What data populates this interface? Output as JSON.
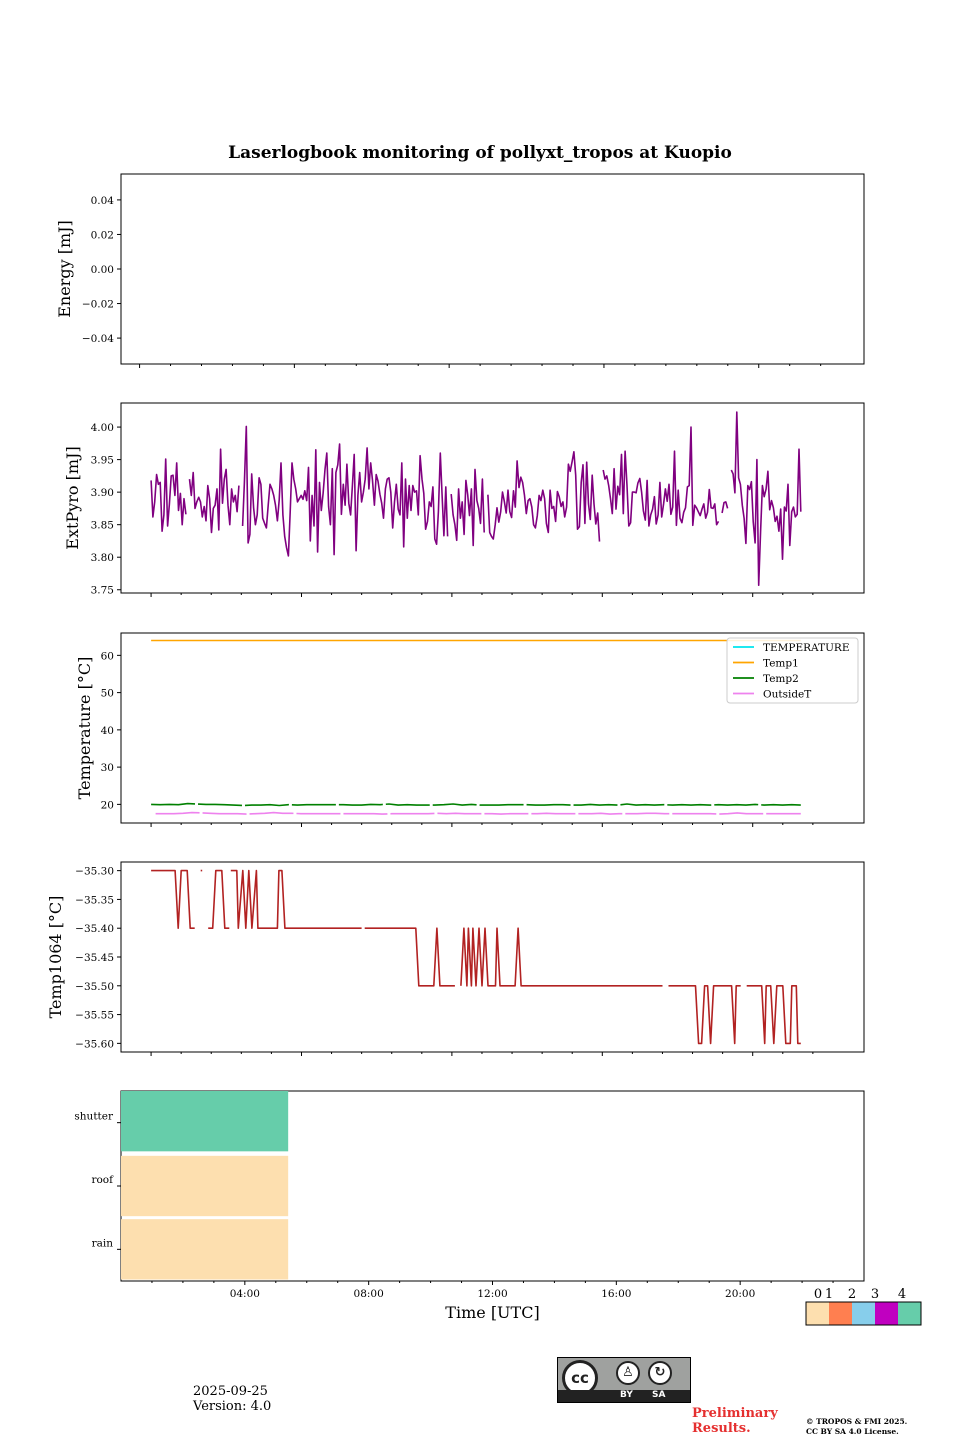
{
  "title": "Laserlogbook monitoring of pollyxt_tropos at Kuopio",
  "footer": {
    "date": "2025-09-25",
    "version": "Version: 4.0",
    "preliminary_line1": "Preliminary",
    "preliminary_line2": "Results.",
    "copyright_line1": "© TROPOS & FMI 2025.",
    "copyright_line2": "CC BY SA 4.0 License.",
    "cc_logo_text": "cc",
    "cc_by": "BY",
    "cc_sa": "SA"
  },
  "colors": {
    "energy_pyro": "#800080",
    "temperature": "#00e5ee",
    "temp1": "#ffa500",
    "temp2": "#008000",
    "outsideT": "#ee82ee",
    "temp1064": "#b22222",
    "status_0": "#fddfaf",
    "status_1": "#ff7f50",
    "status_2": "#87ceeb",
    "status_3": "#c000c0",
    "status_4": "#66cdaa"
  },
  "chart_data": [
    {
      "id": "energy",
      "type": "line",
      "ylabel": "Energy [mJ]",
      "ylim": [
        -0.055,
        0.055
      ],
      "yticks": [
        0.04,
        0.02,
        0.0,
        -0.02,
        -0.04
      ],
      "ytick_labels": [
        "0.04",
        "0.02",
        "0.00",
        "−0.02",
        "−0.04"
      ],
      "xlim": [
        -0.6,
        23.4
      ],
      "series": []
    },
    {
      "id": "extpyro",
      "type": "line",
      "ylabel": "ExtPyro [mJ]",
      "ylim": [
        3.745,
        4.037
      ],
      "yticks": [
        4.0,
        3.95,
        3.9,
        3.85,
        3.8,
        3.75
      ],
      "ytick_labels": [
        "4.00",
        "3.95",
        "3.90",
        "3.85",
        "3.80",
        "3.75"
      ],
      "xlim": [
        -1.0,
        23.7
      ],
      "series": [
        {
          "name": "ExtPyro",
          "t_start": 0.0,
          "t_end": 21.6,
          "values": [
            3.918,
            3.862,
            3.885,
            3.927,
            3.912,
            3.915,
            3.84,
            3.865,
            3.951,
            3.848,
            3.882,
            3.925,
            3.926,
            3.895,
            3.945,
            3.872,
            3.898,
            3.85,
            3.89,
            3.866,
            null,
            3.92,
            3.895,
            3.93,
            3.875,
            3.885,
            3.892,
            3.885,
            3.862,
            3.878,
            3.856,
            3.91,
            3.89,
            3.838,
            3.875,
            3.88,
            3.905,
            3.842,
            3.966,
            3.883,
            3.92,
            3.935,
            3.88,
            3.85,
            3.905,
            3.885,
            3.895,
            3.87,
            3.91,
            null,
            3.848,
            3.915,
            4.001,
            3.822,
            3.835,
            3.928,
            3.876,
            3.85,
            3.865,
            3.922,
            3.912,
            3.86,
            3.852,
            3.845,
            3.88,
            3.912,
            3.905,
            3.895,
            3.88,
            3.856,
            3.888,
            3.945,
            3.865,
            3.832,
            3.815,
            3.802,
            3.87,
            3.945,
            3.92,
            3.905,
            3.885,
            3.89,
            3.895,
            3.889,
            3.902,
            3.887,
            3.938,
            3.825,
            3.895,
            3.848,
            3.965,
            3.808,
            3.915,
            3.872,
            3.898,
            3.935,
            3.96,
            3.878,
            3.85,
            3.936,
            3.804,
            3.93,
            3.942,
            3.974,
            3.866,
            3.912,
            3.88,
            3.943,
            3.883,
            3.865,
            3.91,
            3.958,
            3.81,
            3.895,
            3.93,
            3.885,
            3.9,
            3.92,
            3.968,
            3.905,
            3.945,
            3.918,
            3.88,
            3.927,
            3.917,
            3.897,
            3.883,
            3.86,
            3.905,
            3.92,
            3.922,
            3.9,
            3.845,
            3.885,
            3.912,
            3.874,
            3.865,
            3.945,
            3.816,
            3.92,
            3.86,
            3.91,
            3.872,
            3.91,
            3.9,
            3.902,
            3.865,
            3.956,
            3.92,
            3.898,
            3.843,
            3.855,
            3.885,
            3.878,
            3.908,
            3.828,
            3.82,
            3.87,
            3.96,
            3.895,
            3.833,
            3.908,
            3.832,
            null,
            3.897,
            3.865,
            3.85,
            3.826,
            3.905,
            3.86,
            3.885,
            3.835,
            3.918,
            3.896,
            3.864,
            3.905,
            3.818,
            3.935,
            3.887,
            3.875,
            3.852,
            3.92,
            3.838,
            null,
            3.896,
            3.838,
            3.832,
            3.828,
            3.85,
            3.876,
            3.854,
            3.87,
            3.9,
            3.886,
            3.868,
            3.903,
            3.87,
            3.861,
            3.902,
            3.877,
            3.948,
            3.907,
            3.923,
            3.915,
            3.895,
            3.867,
            3.887,
            3.89,
            3.877,
            3.85,
            3.845,
            3.864,
            3.895,
            3.887,
            3.903,
            3.89,
            3.852,
            3.838,
            3.903,
            3.875,
            3.878,
            3.855,
            3.901,
            3.893,
            3.878,
            3.885,
            3.862,
            3.877,
            3.943,
            3.932,
            3.946,
            3.962,
            3.926,
            3.843,
            3.847,
            3.915,
            3.942,
            3.852,
            3.946,
            3.882,
            3.858,
            3.926,
            3.882,
            3.851,
            3.868,
            3.824,
            null,
            3.934,
            3.92,
            3.925,
            3.91,
            3.89,
            3.867,
            3.936,
            3.874,
            3.909,
            3.896,
            3.958,
            3.867,
            3.963,
            3.91,
            3.848,
            3.853,
            3.9,
            3.9,
            3.899,
            3.914,
            3.921,
            3.9,
            3.871,
            3.857,
            3.918,
            3.848,
            3.865,
            3.874,
            3.893,
            3.851,
            3.865,
            3.915,
            3.862,
            3.882,
            3.905,
            3.886,
            3.912,
            3.866,
            3.877,
            3.963,
            3.849,
            3.903,
            3.86,
            3.853,
            3.869,
            3.876,
            3.908,
            3.91,
            4.0,
            3.849,
            3.88,
            3.876,
            3.87,
            3.864,
            3.874,
            3.882,
            3.86,
            3.869,
            3.904,
            3.876,
            3.875,
            3.882,
            3.85,
            3.855,
            null,
            3.868,
            3.884,
            3.885,
            3.875,
            null,
            3.934,
            3.928,
            3.899,
            4.023,
            3.922,
            3.912,
            3.88,
            3.86,
            3.821,
            3.91,
            3.904,
            3.916,
            3.855,
            3.822,
            3.95,
            3.757,
            3.84,
            3.91,
            3.893,
            3.905,
            3.932,
            3.873,
            3.887,
            3.876,
            3.855,
            3.863,
            3.84,
            3.874,
            3.797,
            3.877,
            3.871,
            3.912,
            3.818,
            3.87,
            3.877,
            3.862,
            3.866,
            3.966,
            3.87
          ]
        }
      ]
    },
    {
      "id": "temperature",
      "type": "line",
      "ylabel": "Temperature [°C]",
      "ylim": [
        15,
        66
      ],
      "yticks": [
        60,
        50,
        40,
        30,
        20
      ],
      "ytick_labels": [
        "60",
        "50",
        "40",
        "30",
        "20"
      ],
      "xlim": [
        -1.0,
        23.7
      ],
      "legend": {
        "position": "top-right",
        "entries": [
          "TEMPERATURE",
          "Temp1",
          "Temp2",
          "OutsideT"
        ]
      },
      "series": [
        {
          "name": "TEMPERATURE",
          "values": []
        },
        {
          "name": "Temp1",
          "t_start": 0.0,
          "t_end": 21.6,
          "values": [
            64.0,
            64.0
          ]
        },
        {
          "name": "Temp2",
          "t_start": 0.0,
          "t_end": 21.6,
          "values": [
            20.0,
            19.9,
            20.0,
            19.9,
            20.2,
            20.1,
            20.0,
            20.0,
            19.9,
            19.8,
            19.7,
            19.8,
            19.8,
            19.9,
            19.7,
            19.9,
            19.8,
            19.9,
            19.9,
            19.9,
            19.9,
            19.9,
            19.8,
            19.8,
            20.0,
            19.9,
            20.1,
            19.8,
            19.9,
            19.8,
            19.8,
            19.8,
            19.9,
            20.1,
            19.8,
            20.0,
            19.8,
            19.8,
            19.8,
            19.9,
            19.9,
            19.9,
            19.8,
            19.8,
            19.9,
            19.9,
            19.8,
            19.8,
            20.0,
            19.8,
            19.9,
            19.8,
            20.1,
            19.8,
            19.9,
            19.8,
            19.9,
            19.8,
            19.9,
            19.8,
            19.9,
            19.8,
            19.9,
            19.8,
            19.9,
            19.8,
            20.0,
            19.8,
            19.9,
            19.8,
            19.9,
            19.8
          ]
        },
        {
          "name": "OutsideT",
          "t_start": 0.15,
          "t_end": 21.6,
          "values": [
            17.5,
            17.5,
            17.5,
            17.6,
            17.8,
            17.7,
            17.6,
            17.5,
            17.5,
            17.5,
            17.4,
            17.5,
            17.6,
            17.8,
            17.6,
            17.6,
            17.5,
            17.5,
            17.5,
            17.5,
            17.5,
            17.5,
            17.5,
            17.5,
            17.5,
            17.4,
            17.5,
            17.5,
            17.5,
            17.5,
            17.5,
            17.6,
            17.5,
            17.6,
            17.5,
            17.5,
            17.5,
            17.5,
            17.4,
            17.5,
            17.5,
            17.5,
            17.5,
            17.6,
            17.5,
            17.5,
            17.5,
            17.5,
            17.5,
            17.6,
            17.4,
            17.5,
            17.5,
            17.5,
            17.6,
            17.6,
            17.5,
            17.5,
            17.5,
            17.5,
            17.5,
            17.5,
            17.4,
            17.5,
            17.7,
            17.5,
            17.5,
            17.5,
            17.5,
            17.5,
            17.5,
            17.5
          ]
        }
      ]
    },
    {
      "id": "temp1064",
      "type": "line",
      "ylabel": "Temp1064 [°C]",
      "ylim": [
        -35.615,
        -35.285
      ],
      "yticks": [
        -35.3,
        -35.35,
        -35.4,
        -35.45,
        -35.5,
        -35.55,
        -35.6
      ],
      "ytick_labels": [
        "−35.30",
        "−35.35",
        "−35.40",
        "−35.45",
        "−35.50",
        "−35.55",
        "−35.60"
      ],
      "xlim": [
        -1.0,
        23.7
      ],
      "series": [
        {
          "name": "Temp1064",
          "points": [
            [
              0.0,
              -35.3
            ],
            [
              0.8,
              -35.3
            ],
            [
              0.9,
              -35.4
            ],
            [
              1.0,
              -35.3
            ],
            [
              1.2,
              -35.3
            ],
            [
              1.3,
              -35.4
            ],
            [
              1.45,
              -35.4
            ],
            null,
            [
              1.65,
              -35.3
            ],
            [
              1.7,
              -35.3
            ],
            null,
            [
              1.9,
              -35.4
            ],
            [
              2.05,
              -35.4
            ],
            [
              2.15,
              -35.3
            ],
            [
              2.35,
              -35.3
            ],
            [
              2.45,
              -35.4
            ],
            [
              2.6,
              -35.4
            ],
            null,
            [
              2.65,
              -35.3
            ],
            [
              2.85,
              -35.3
            ],
            [
              2.9,
              -35.4
            ],
            [
              3.05,
              -35.3
            ],
            [
              3.15,
              -35.4
            ],
            [
              3.25,
              -35.3
            ],
            [
              3.35,
              -35.4
            ],
            [
              3.5,
              -35.3
            ],
            [
              3.55,
              -35.4
            ],
            [
              4.2,
              -35.4
            ],
            [
              4.25,
              -35.3
            ],
            [
              4.35,
              -35.3
            ],
            [
              4.45,
              -35.4
            ],
            [
              7.0,
              -35.4
            ],
            null,
            [
              7.1,
              -35.4
            ],
            [
              8.8,
              -35.4
            ],
            [
              8.9,
              -35.5
            ],
            [
              9.4,
              -35.5
            ],
            [
              9.5,
              -35.4
            ],
            [
              9.6,
              -35.5
            ],
            [
              10.1,
              -35.5
            ],
            null,
            [
              10.3,
              -35.5
            ],
            [
              10.4,
              -35.4
            ],
            [
              10.5,
              -35.5
            ],
            [
              10.55,
              -35.4
            ],
            [
              10.65,
              -35.5
            ],
            [
              10.7,
              -35.4
            ],
            [
              10.8,
              -35.5
            ],
            [
              10.9,
              -35.4
            ],
            [
              11.0,
              -35.5
            ],
            [
              11.1,
              -35.4
            ],
            [
              11.2,
              -35.5
            ],
            [
              11.45,
              -35.5
            ],
            [
              11.5,
              -35.4
            ],
            [
              11.6,
              -35.5
            ],
            [
              12.1,
              -35.5
            ],
            [
              12.2,
              -35.4
            ],
            [
              12.3,
              -35.5
            ],
            [
              17.0,
              -35.5
            ],
            null,
            [
              17.2,
              -35.5
            ],
            [
              18.1,
              -35.5
            ],
            [
              18.2,
              -35.6
            ],
            [
              18.3,
              -35.6
            ],
            [
              18.4,
              -35.5
            ],
            [
              18.5,
              -35.5
            ],
            [
              18.6,
              -35.6
            ],
            [
              18.7,
              -35.5
            ],
            [
              19.3,
              -35.5
            ],
            [
              19.4,
              -35.6
            ],
            [
              19.45,
              -35.5
            ],
            [
              19.6,
              -35.5
            ],
            null,
            [
              19.8,
              -35.5
            ],
            [
              20.3,
              -35.5
            ],
            [
              20.4,
              -35.6
            ],
            [
              20.45,
              -35.5
            ],
            [
              20.6,
              -35.5
            ],
            [
              20.7,
              -35.6
            ],
            [
              20.8,
              -35.5
            ],
            [
              21.0,
              -35.5
            ],
            [
              21.1,
              -35.6
            ],
            [
              21.25,
              -35.6
            ],
            [
              21.3,
              -35.5
            ],
            [
              21.45,
              -35.5
            ],
            [
              21.5,
              -35.6
            ],
            [
              21.6,
              -35.6
            ]
          ]
        }
      ]
    },
    {
      "id": "status",
      "type": "heatmap",
      "xlabel": "Time [UTC]",
      "xlim": [
        0,
        24
      ],
      "xticks": [
        4,
        8,
        12,
        16,
        20
      ],
      "xtick_labels": [
        "04:00",
        "08:00",
        "12:00",
        "16:00",
        "20:00"
      ],
      "rows": [
        "shutter",
        "roof",
        "rain"
      ],
      "cells": [
        {
          "row": "shutter",
          "t_start": 0.0,
          "t_end": 5.4,
          "status": 4
        },
        {
          "row": "roof",
          "t_start": 0.0,
          "t_end": 5.4,
          "status": 0
        },
        {
          "row": "rain",
          "t_start": 0.0,
          "t_end": 5.4,
          "status": 0
        }
      ],
      "colorbar": {
        "labels": [
          "0",
          "1",
          "2",
          "3",
          "4"
        ]
      }
    }
  ]
}
